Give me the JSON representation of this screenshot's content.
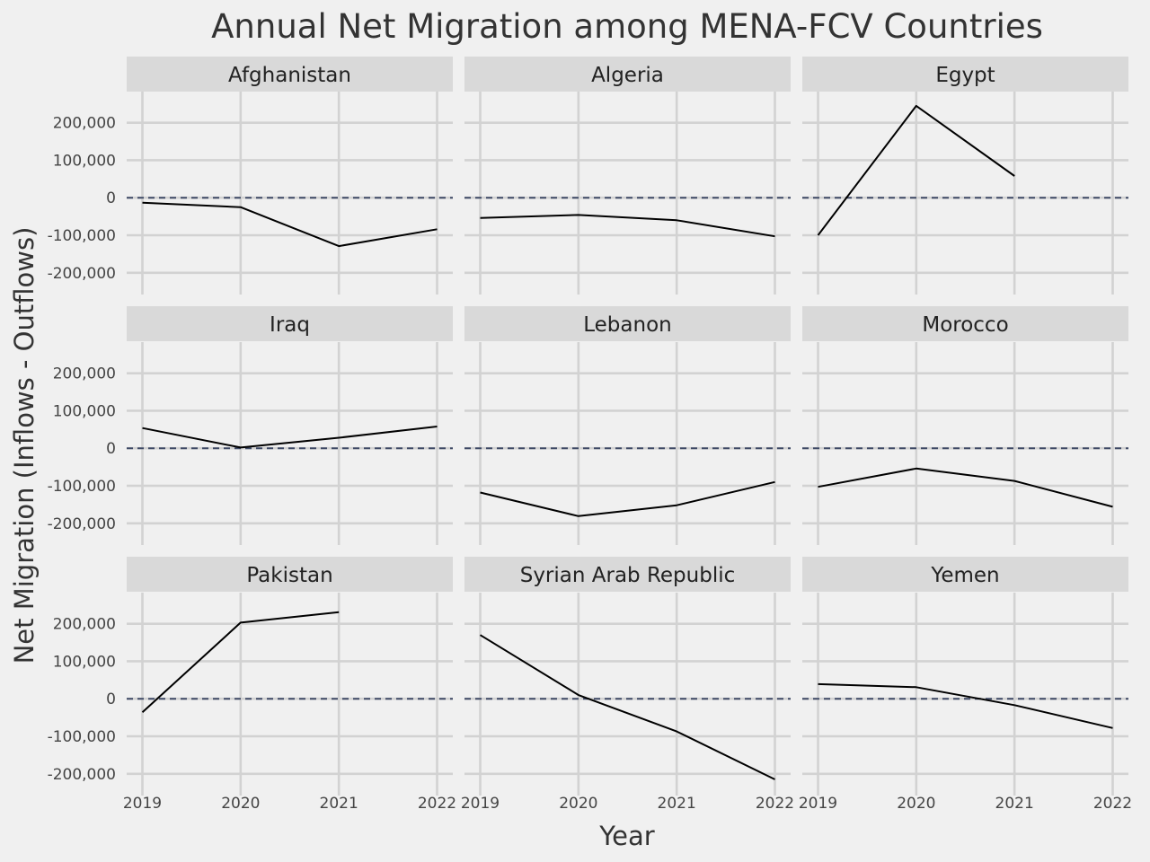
{
  "chart_data": {
    "type": "line",
    "title": "Annual Net Migration among MENA-FCV Countries",
    "xlabel": "Year",
    "ylabel": "Net Migration (Inflows - Outflows)",
    "x": [
      2019,
      2020,
      2021,
      2022
    ],
    "x_tick_labels": [
      "2019",
      "2020",
      "2021",
      "2022"
    ],
    "y_ticks": [
      200000,
      100000,
      0,
      -100000,
      -200000
    ],
    "y_tick_labels": [
      "200,000",
      "100,000",
      "0",
      "-100,000",
      "-200,000"
    ],
    "ylim": [
      -258000,
      283000
    ],
    "xlim": [
      2018.84,
      2022.16
    ],
    "reference_line": {
      "y": 0,
      "style": "dashed"
    },
    "grid": true,
    "line_color": "#000000",
    "ref_color": "#3f4a66",
    "grid_color": "#d2d2d2",
    "strip_color": "#d9d9d9",
    "background": "#f0f0f0",
    "facets": [
      {
        "name": "Afghanistan",
        "values": [
          -13000,
          -25000,
          -129000,
          -84000
        ]
      },
      {
        "name": "Algeria",
        "values": [
          -54000,
          -46000,
          -60000,
          -103000
        ]
      },
      {
        "name": "Egypt",
        "values": [
          -100000,
          245000,
          58000,
          null
        ]
      },
      {
        "name": "Iraq",
        "values": [
          54000,
          2000,
          28000,
          58000
        ]
      },
      {
        "name": "Lebanon",
        "values": [
          -118000,
          -181000,
          -152000,
          -90000
        ]
      },
      {
        "name": "Morocco",
        "values": [
          -103000,
          -54000,
          -87000,
          -156000
        ]
      },
      {
        "name": "Pakistan",
        "values": [
          -36000,
          203000,
          231000,
          null
        ]
      },
      {
        "name": "Syrian Arab Republic",
        "values": [
          170000,
          10000,
          -87000,
          -215000
        ]
      },
      {
        "name": "Yemen",
        "values": [
          39000,
          31000,
          -17000,
          -78000
        ]
      }
    ]
  }
}
